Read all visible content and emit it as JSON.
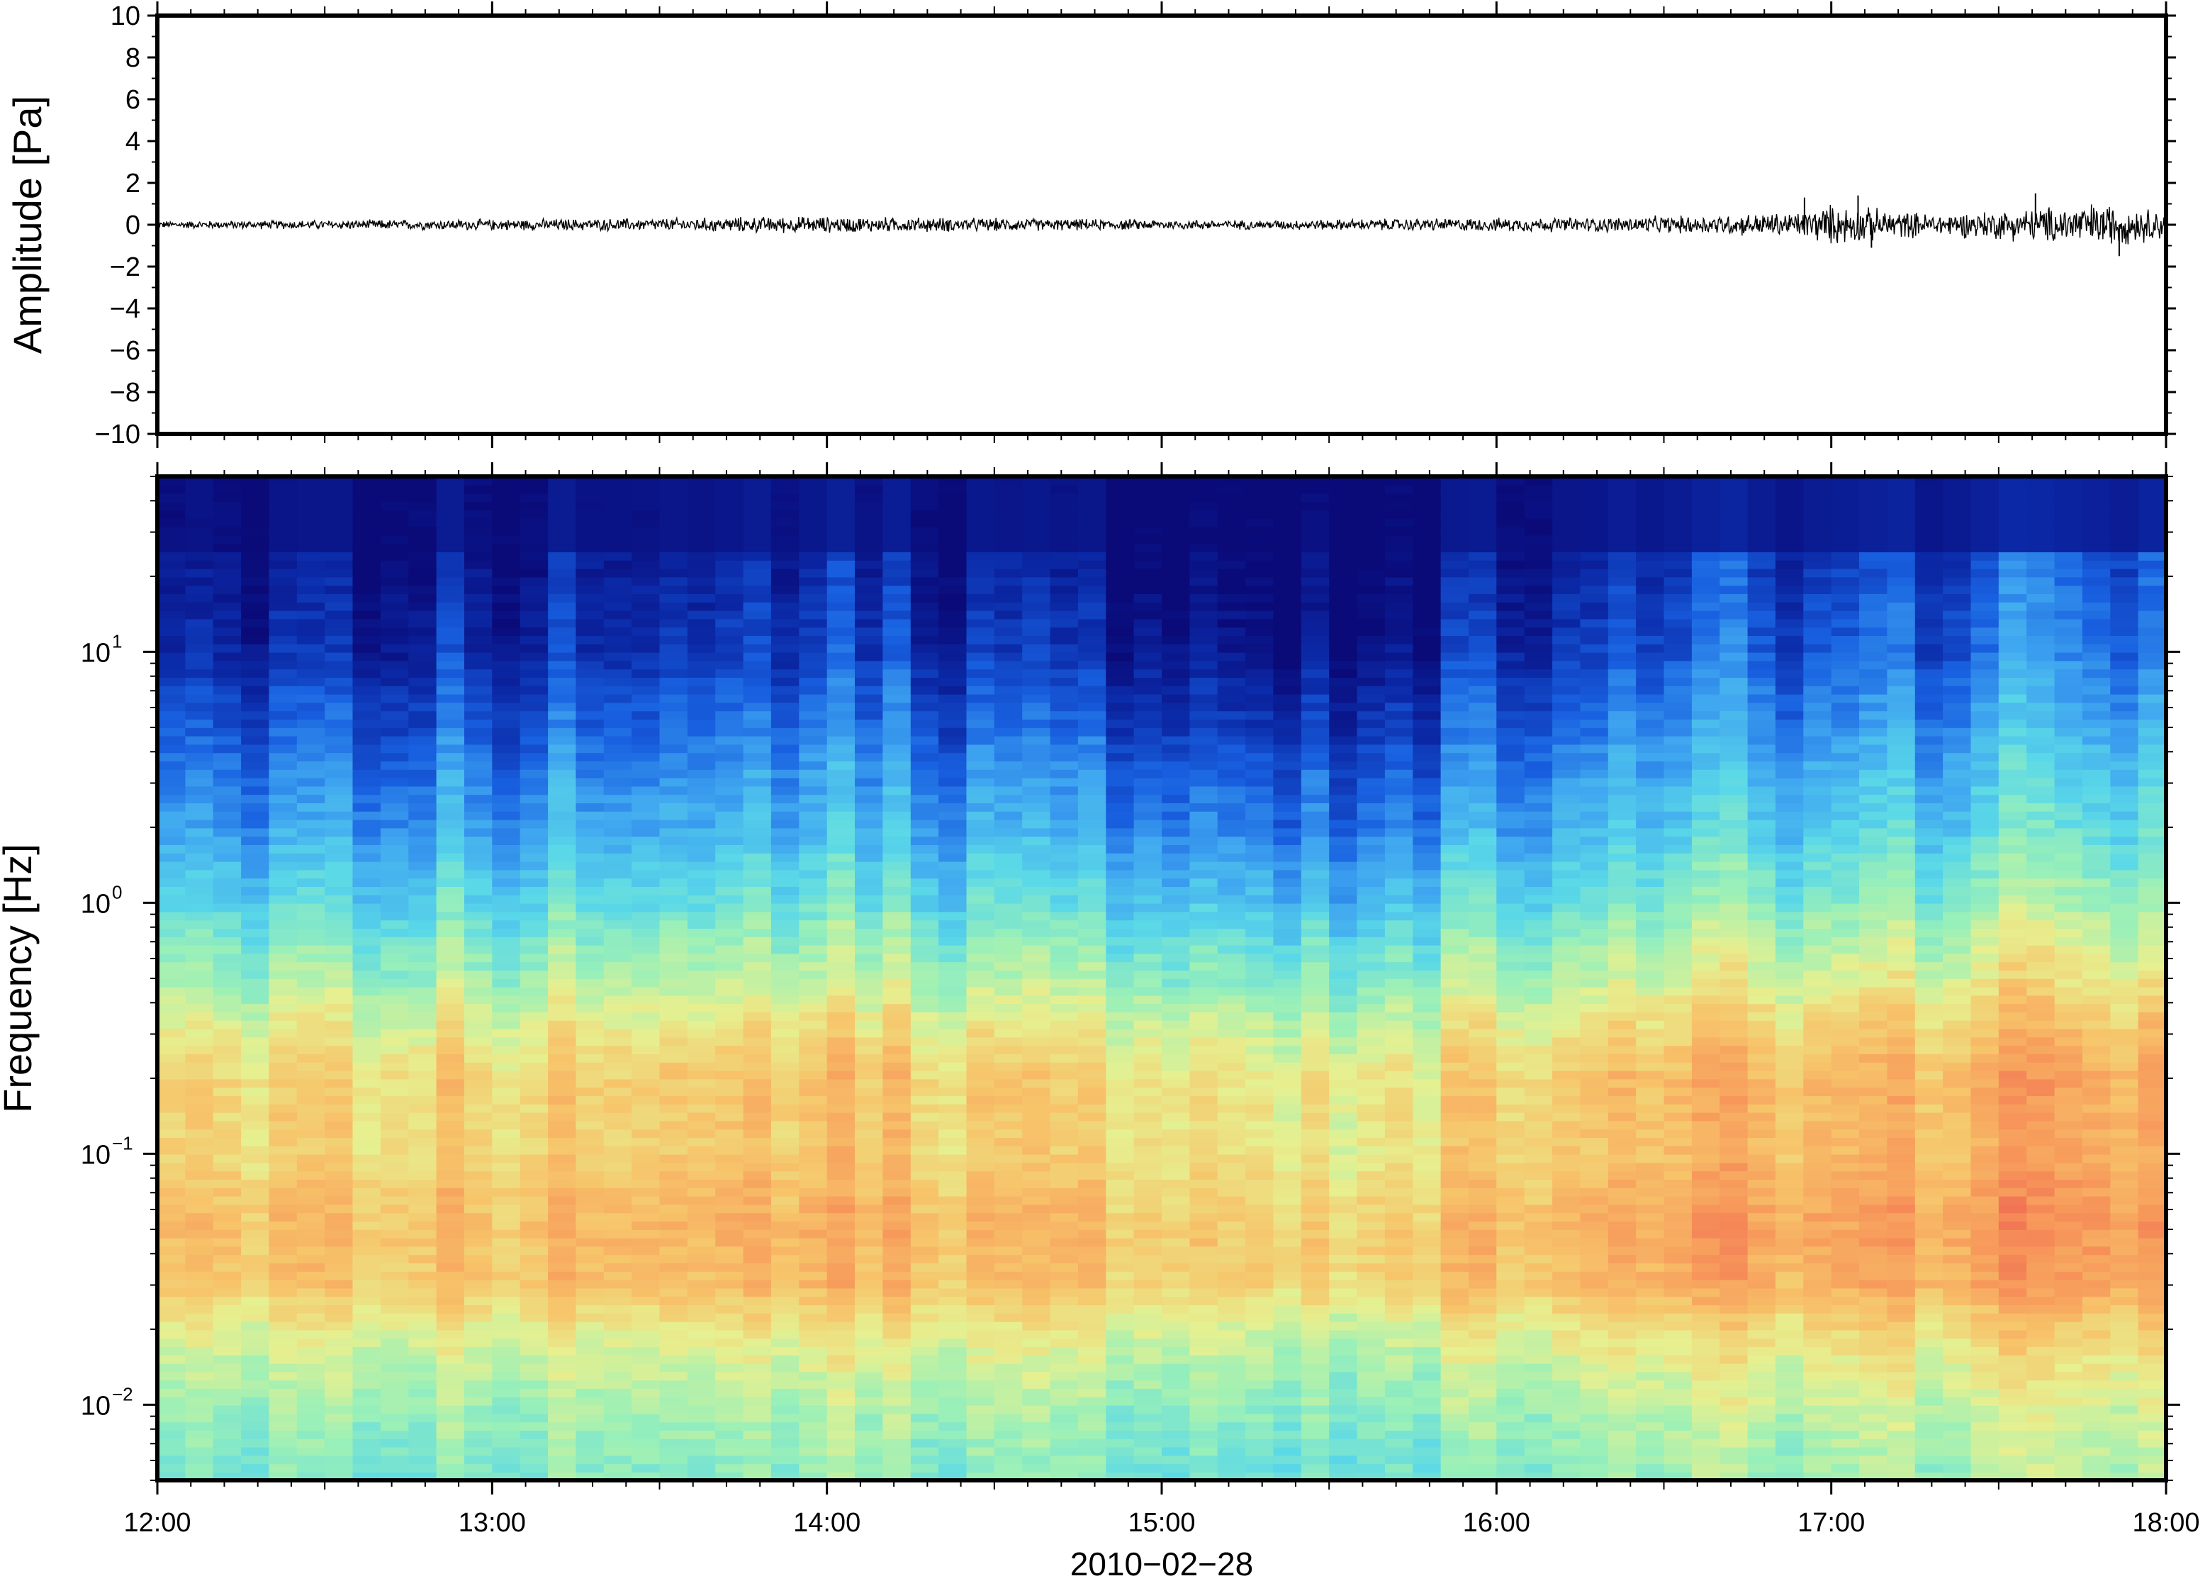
{
  "chart_data": [
    {
      "type": "line",
      "name": "waveform",
      "ylabel": "Amplitude [Pa]",
      "ylim": [
        -10,
        10
      ],
      "yticks": [
        "10",
        "8",
        "6",
        "4",
        "2",
        "0",
        "−2",
        "−4",
        "−6",
        "−8",
        "−10"
      ],
      "ytick_values": [
        10,
        8,
        6,
        4,
        2,
        0,
        -2,
        -4,
        -6,
        -8,
        -10
      ],
      "xlim": [
        "12:00",
        "18:00"
      ],
      "envelope_hours": [
        12.0,
        12.5,
        13.0,
        13.5,
        13.9,
        14.3,
        14.8,
        15.3,
        15.8,
        16.3,
        16.6,
        16.9,
        17.0,
        17.3,
        17.6,
        17.8,
        18.0
      ],
      "envelope_amplitude": [
        0.2,
        0.25,
        0.3,
        0.35,
        0.45,
        0.4,
        0.3,
        0.25,
        0.35,
        0.4,
        0.5,
        0.7,
        1.1,
        0.6,
        0.9,
        1.2,
        0.8
      ],
      "peaks": [
        {
          "hour": 16.92,
          "value": 1.3
        },
        {
          "hour": 17.08,
          "value": 1.4
        },
        {
          "hour": 17.12,
          "value": -1.1
        },
        {
          "hour": 17.61,
          "value": 1.5
        },
        {
          "hour": 17.86,
          "value": -1.5
        }
      ],
      "grid": false,
      "line_color": "#000000"
    },
    {
      "type": "heatmap",
      "name": "spectrogram",
      "ylabel": "Frequency [Hz]",
      "yscale": "log",
      "ylim": [
        0.005,
        50
      ],
      "ytick_values": [
        10,
        1,
        0.1,
        0.01
      ],
      "yticks": [
        {
          "base": "10",
          "exp": "1"
        },
        {
          "base": "10",
          "exp": "0"
        },
        {
          "base": "10",
          "exp": "−1"
        },
        {
          "base": "10",
          "exp": "−2"
        }
      ],
      "xlabel": "2010−02−28",
      "xticks": [
        "12:00",
        "13:00",
        "14:00",
        "15:00",
        "16:00",
        "17:00",
        "18:00"
      ],
      "xtick_hours": [
        12,
        13,
        14,
        15,
        16,
        17,
        18
      ],
      "x_minor_hours_step": 0.1,
      "colormap": [
        "#0a0a78",
        "#0b2aa8",
        "#1860e0",
        "#3fa6f0",
        "#5ad8e8",
        "#9af0b8",
        "#e6f090",
        "#f7c46a",
        "#f7965a",
        "#ec5a50"
      ],
      "power_profile": {
        "freq_hz": [
          50,
          20,
          10,
          5,
          2,
          1,
          0.5,
          0.3,
          0.2,
          0.1,
          0.05,
          0.03,
          0.02,
          0.01,
          0.005
        ],
        "level": [
          0.0,
          0.03,
          0.08,
          0.18,
          0.3,
          0.42,
          0.55,
          0.66,
          0.72,
          0.72,
          0.78,
          0.76,
          0.66,
          0.56,
          0.5
        ]
      },
      "activity_hours": [
        12.0,
        13.0,
        14.0,
        15.0,
        15.4,
        15.6,
        16.0,
        16.5,
        17.0,
        17.4,
        17.7,
        18.0
      ],
      "activity_level": [
        0.0,
        0.02,
        0.06,
        0.02,
        -0.1,
        0.0,
        0.03,
        0.08,
        0.14,
        0.12,
        0.2,
        0.18
      ]
    }
  ]
}
